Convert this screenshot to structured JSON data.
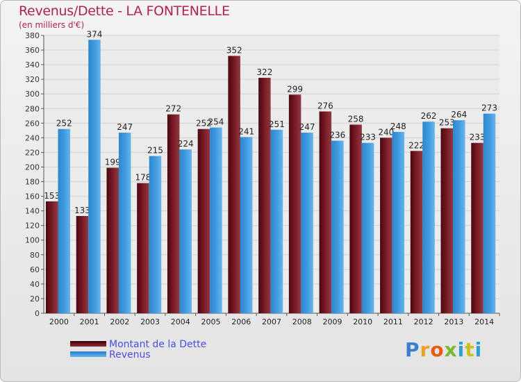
{
  "header": {
    "title": "Revenus/Dette - LA FONTENELLE",
    "subtitle": "(en milliers d'€)"
  },
  "legend": {
    "items": [
      {
        "label": "Montant de la Dette",
        "color": "#6b0f1a"
      },
      {
        "label": "Revenus",
        "color": "#3c96dc"
      }
    ]
  },
  "logo": {
    "text": "Proxiti"
  },
  "chart_data": {
    "type": "bar",
    "categories": [
      "2000",
      "2001",
      "2002",
      "2003",
      "2004",
      "2005",
      "2006",
      "2007",
      "2008",
      "2009",
      "2010",
      "2011",
      "2012",
      "2013",
      "2014"
    ],
    "series": [
      {
        "name": "Montant de la Dette",
        "color": "#6b0f1a",
        "values": [
          153,
          133,
          199,
          178,
          272,
          252,
          352,
          322,
          299,
          276,
          258,
          240,
          222,
          253,
          233
        ]
      },
      {
        "name": "Revenus",
        "color": "#3c96dc",
        "values": [
          252,
          374,
          247,
          215,
          224,
          254,
          241,
          251,
          247,
          236,
          233,
          248,
          262,
          264,
          273
        ]
      }
    ],
    "ylim": [
      0,
      380
    ],
    "yticks": [
      0,
      20,
      40,
      60,
      80,
      100,
      120,
      140,
      160,
      180,
      200,
      220,
      240,
      260,
      280,
      300,
      320,
      340,
      360,
      380
    ],
    "grid": true,
    "legend_position": "bottom-left"
  }
}
